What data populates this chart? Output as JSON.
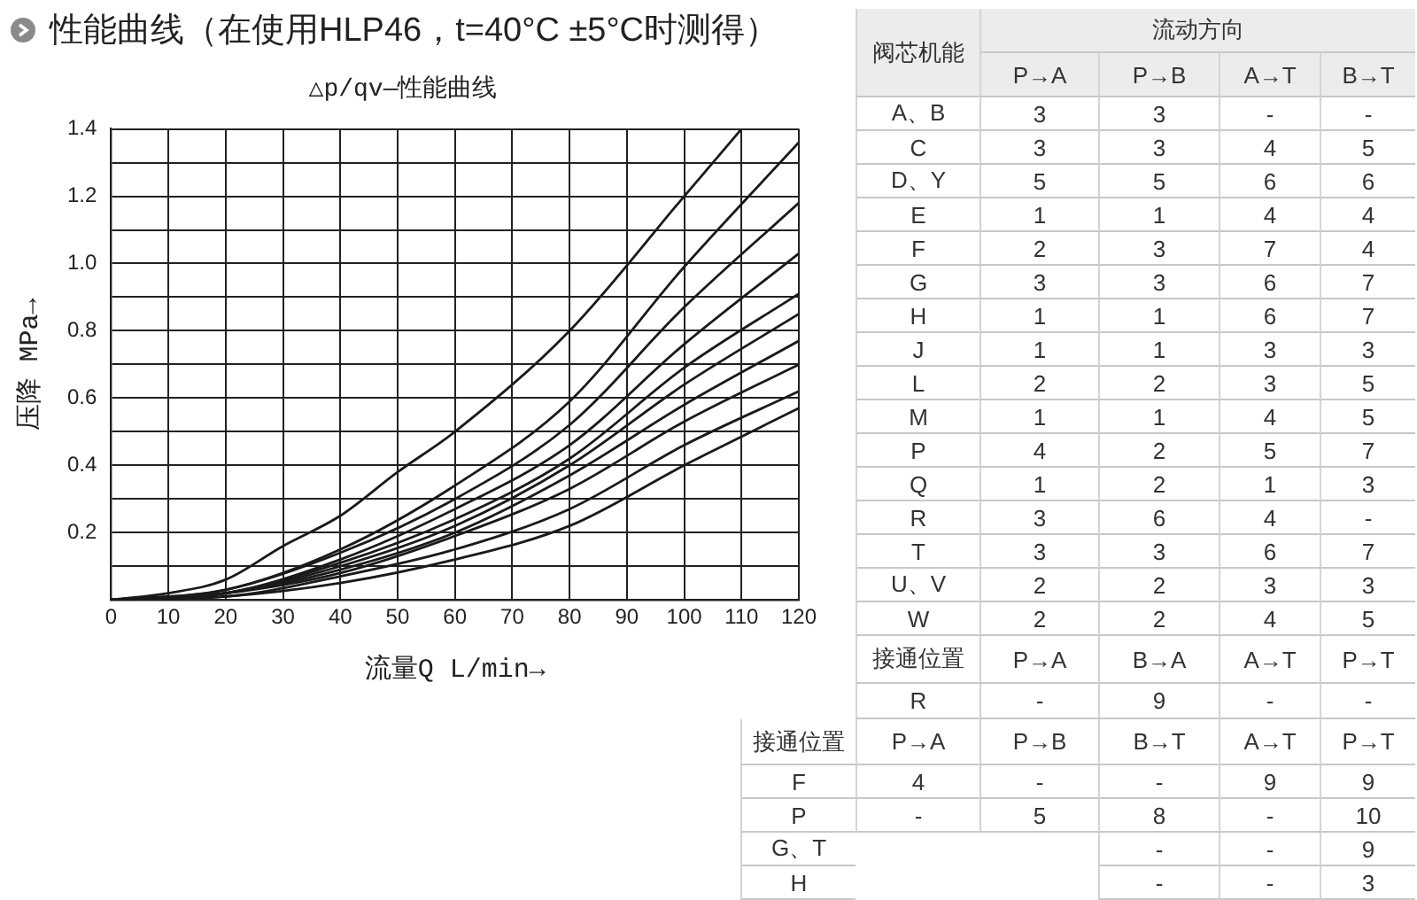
{
  "chart_data": [
    {
      "type": "line",
      "title": "性能曲线（在使用HLP46，t=40°C ±5°C时测得）",
      "subtitle": "△p/qv—性能曲线",
      "xlabel": "流量Q L/min→",
      "ylabel": "压降 MPa→",
      "xlim": [
        0,
        120
      ],
      "xticks": [
        0,
        10,
        20,
        30,
        40,
        50,
        60,
        70,
        80,
        90,
        100,
        110,
        120
      ],
      "ylim": [
        0,
        1.4
      ],
      "yticks": [
        {
          "value": 0,
          "label": null
        },
        {
          "value": 0.1,
          "label": null
        },
        0.2,
        {
          "value": 0.3,
          "label": null
        },
        0.4,
        {
          "value": 0.5,
          "label": null
        },
        0.6,
        {
          "value": 0.7,
          "label": null
        },
        0.8,
        {
          "value": 0.9,
          "label": null
        },
        {
          "value": 1.0,
          "label": "1.0"
        },
        {
          "value": 1.1,
          "label": null
        },
        1.2,
        {
          "value": 1.3,
          "label": null
        },
        1.4
      ],
      "grid": true,
      "marker": "none",
      "line_style": "solid",
      "series": [
        {
          "color": "#1a1a1a",
          "x": [
            0,
            10,
            20,
            30,
            40,
            50,
            60,
            80,
            100,
            110
          ],
          "values": [
            0,
            0.02,
            0.06,
            0.16,
            0.25,
            0.38,
            0.5,
            0.8,
            1.2,
            1.4
          ]
        },
        {
          "color": "#1a1a1a",
          "x": [
            0,
            20,
            40,
            60,
            80,
            100,
            120
          ],
          "values": [
            0,
            0.03,
            0.15,
            0.34,
            0.59,
            0.99,
            1.36
          ]
        },
        {
          "color": "#1a1a1a",
          "x": [
            0,
            20,
            40,
            60,
            80,
            100,
            120
          ],
          "values": [
            0,
            0.03,
            0.14,
            0.3,
            0.52,
            0.87,
            1.18
          ]
        },
        {
          "color": "#1a1a1a",
          "x": [
            0,
            20,
            40,
            60,
            80,
            100,
            120
          ],
          "values": [
            0,
            0.02,
            0.12,
            0.27,
            0.46,
            0.76,
            1.03
          ]
        },
        {
          "color": "#1a1a1a",
          "x": [
            0,
            20,
            40,
            60,
            80,
            100,
            120
          ],
          "values": [
            0,
            0.02,
            0.11,
            0.24,
            0.42,
            0.69,
            0.91
          ]
        },
        {
          "color": "#1a1a1a",
          "x": [
            0,
            20,
            40,
            60,
            80,
            100,
            120
          ],
          "values": [
            0,
            0.02,
            0.1,
            0.22,
            0.4,
            0.64,
            0.85
          ]
        },
        {
          "color": "#1a1a1a",
          "x": [
            0,
            20,
            40,
            60,
            80,
            100,
            120
          ],
          "values": [
            0,
            0.02,
            0.09,
            0.2,
            0.37,
            0.58,
            0.77
          ]
        },
        {
          "color": "#1a1a1a",
          "x": [
            0,
            20,
            40,
            60,
            80,
            100,
            120
          ],
          "values": [
            0,
            0.02,
            0.08,
            0.19,
            0.33,
            0.53,
            0.7
          ]
        },
        {
          "color": "#1a1a1a",
          "x": [
            0,
            20,
            40,
            60,
            80,
            100,
            120
          ],
          "values": [
            0,
            0.01,
            0.07,
            0.15,
            0.27,
            0.46,
            0.62
          ]
        },
        {
          "color": "#1a1a1a",
          "x": [
            0,
            20,
            40,
            60,
            80,
            100,
            120
          ],
          "values": [
            0,
            0.01,
            0.05,
            0.12,
            0.22,
            0.4,
            0.57
          ]
        }
      ]
    },
    {
      "type": "other",
      "annotations": [
        "阀芯机能",
        "流动方向",
        "P→A",
        "P→B",
        "A→T",
        "B→T",
        "A、B",
        "3",
        "3",
        "-",
        "-",
        "C",
        "3",
        "3",
        "4",
        "5",
        "D、Y",
        "5",
        "5",
        "6",
        "6",
        "E",
        "1",
        "1",
        "4",
        "4",
        "F",
        "2",
        "3",
        "7",
        "4",
        "G",
        "3",
        "3",
        "6",
        "7",
        "H",
        "1",
        "1",
        "6",
        "7",
        "J",
        "1",
        "1",
        "3",
        "3",
        "L",
        "2",
        "2",
        "3",
        "5",
        "M",
        "1",
        "1",
        "4",
        "5",
        "P",
        "4",
        "2",
        "5",
        "7",
        "Q",
        "1",
        "2",
        "1",
        "3",
        "R",
        "3",
        "6",
        "4",
        "-",
        "T",
        "3",
        "3",
        "6",
        "7",
        "U、V",
        "2",
        "2",
        "3",
        "3",
        "W",
        "2",
        "2",
        "4",
        "5",
        "接通位置",
        "P→A",
        "B→A",
        "A→T",
        "P→T",
        "R",
        "-",
        "9",
        "-",
        "-",
        "接通位置",
        "P→A",
        "P→B",
        "B→T",
        "A→T",
        "P→T",
        "F",
        "4",
        "-",
        "-",
        "9",
        "9",
        "P",
        "-",
        "5",
        "8",
        "-",
        "10",
        "G、T",
        "-",
        "-",
        "9",
        "H",
        "-",
        "-",
        "3"
      ]
    }
  ]
}
